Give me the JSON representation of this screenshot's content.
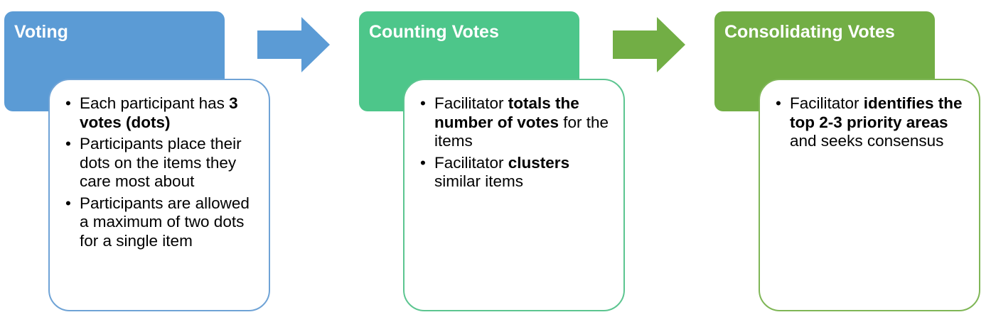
{
  "colors": {
    "voting": "#5b9bd5",
    "counting": "#4dc68a",
    "consolidating": "#72ae45"
  },
  "steps": [
    {
      "title": "Voting",
      "bullets": [
        [
          {
            "text": "Each participant has "
          },
          {
            "text": "3 votes (dots)",
            "bold": true
          }
        ],
        [
          {
            "text": "Participants place their dots on the items they care most about"
          }
        ],
        [
          {
            "text": "Participants are allowed a maximum of two dots for a single item"
          }
        ]
      ]
    },
    {
      "title": "Counting Votes",
      "bullets": [
        [
          {
            "text": "Facilitator "
          },
          {
            "text": "totals the number of votes",
            "bold": true
          },
          {
            "text": " for the items"
          }
        ],
        [
          {
            "text": "Facilitator "
          },
          {
            "text": "clusters",
            "bold": true
          },
          {
            "text": " similar items"
          }
        ]
      ]
    },
    {
      "title": "Consolidating Votes",
      "bullets": [
        [
          {
            "text": "Facilitator "
          },
          {
            "text": "identifies the top 2-3 priority areas",
            "bold": true
          },
          {
            "text": " and seeks consensus"
          }
        ]
      ]
    }
  ],
  "arrows": [
    {
      "icon": "right-arrow-icon",
      "color": "#5b9bd5"
    },
    {
      "icon": "right-arrow-icon",
      "color": "#72ae45"
    }
  ]
}
